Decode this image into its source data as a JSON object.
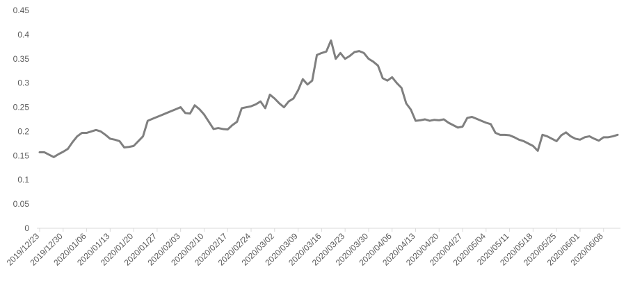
{
  "chart_data": {
    "type": "line",
    "categories": [
      "2019/12/23",
      null,
      null,
      null,
      null,
      "2019/12/30",
      null,
      null,
      null,
      null,
      "2020/01/06",
      null,
      null,
      null,
      null,
      "2020/01/13",
      null,
      null,
      null,
      null,
      "2020/01/20",
      null,
      null,
      null,
      null,
      "2020/01/27",
      null,
      null,
      null,
      null,
      "2020/02/03",
      null,
      null,
      null,
      null,
      "2020/02/10",
      null,
      null,
      null,
      null,
      "2020/02/17",
      null,
      null,
      null,
      null,
      "2020/02/24",
      null,
      null,
      null,
      null,
      "2020/03/02",
      null,
      null,
      null,
      null,
      "2020/03/09",
      null,
      null,
      null,
      null,
      "2020/03/16",
      null,
      null,
      null,
      null,
      "2020/03/23",
      null,
      null,
      null,
      null,
      "2020/03/30",
      null,
      null,
      null,
      null,
      "2020/04/06",
      null,
      null,
      null,
      null,
      "2020/04/13",
      null,
      null,
      null,
      null,
      "2020/04/20",
      null,
      null,
      null,
      null,
      "2020/04/27",
      null,
      null,
      null,
      null,
      "2020/05/04",
      null,
      null,
      null,
      null,
      "2020/05/11",
      null,
      null,
      null,
      null,
      "2020/05/18",
      null,
      null,
      null,
      null,
      "2020/05/25",
      null,
      null,
      null,
      null,
      "2020/06/01",
      null,
      null,
      null,
      null,
      "2020/06/08",
      null,
      null,
      null
    ],
    "values": [
      0.157,
      0.157,
      0.152,
      0.147,
      0.153,
      0.158,
      0.164,
      0.178,
      0.19,
      0.197,
      0.197,
      0.2,
      0.203,
      0.2,
      0.193,
      0.185,
      0.183,
      0.18,
      0.167,
      0.168,
      0.17,
      0.18,
      0.19,
      0.222,
      0.226,
      0.23,
      0.234,
      0.238,
      0.242,
      0.246,
      0.25,
      0.238,
      0.237,
      0.254,
      0.246,
      0.235,
      0.22,
      0.205,
      0.207,
      0.205,
      0.204,
      0.213,
      0.22,
      0.248,
      0.25,
      0.252,
      0.256,
      0.262,
      0.248,
      0.276,
      0.268,
      0.258,
      0.25,
      0.262,
      0.268,
      0.285,
      0.308,
      0.297,
      0.305,
      0.358,
      0.362,
      0.365,
      0.388,
      0.35,
      0.362,
      0.35,
      0.356,
      0.364,
      0.366,
      0.362,
      0.35,
      0.344,
      0.336,
      0.31,
      0.305,
      0.312,
      0.3,
      0.29,
      0.258,
      0.245,
      0.222,
      0.223,
      0.225,
      0.222,
      0.224,
      0.223,
      0.225,
      0.218,
      0.213,
      0.208,
      0.21,
      0.228,
      0.23,
      0.226,
      0.222,
      0.218,
      0.215,
      0.197,
      0.193,
      0.193,
      0.192,
      0.188,
      0.183,
      0.18,
      0.175,
      0.17,
      0.16,
      0.193,
      0.19,
      0.185,
      0.18,
      0.192,
      0.198,
      0.19,
      0.185,
      0.183,
      0.188,
      0.19,
      0.185,
      0.181,
      0.188,
      0.188,
      0.19,
      0.193
    ],
    "color": "#7f7f7f",
    "ylim": [
      0,
      0.45
    ],
    "yticks": [
      0,
      0.05,
      0.1,
      0.15,
      0.2,
      0.25,
      0.3,
      0.35,
      0.4,
      0.45
    ],
    "grid": false
  }
}
